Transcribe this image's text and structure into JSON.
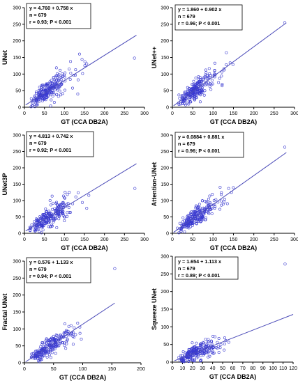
{
  "chart_data": [
    {
      "type": "scatter",
      "ylabel": "UNet",
      "xlabel": "GT (CCA DB2A)",
      "xlim": [
        0,
        300
      ],
      "ylim": [
        0,
        300
      ],
      "xticks": [
        0,
        50,
        100,
        150,
        200,
        250,
        300
      ],
      "yticks": [
        0,
        50,
        100,
        150,
        200,
        250,
        300
      ],
      "annotation": [
        "y = 4.760  +  0.758  x",
        "n = 679",
        "r = 0.93; P < 0.001"
      ],
      "regression": {
        "intercept": 4.76,
        "slope": 0.758,
        "x_range": [
          3,
          280
        ]
      },
      "n": 679,
      "outliers": [
        [
          275,
          148
        ]
      ]
    },
    {
      "type": "scatter",
      "ylabel": "UNet++",
      "xlabel": "GT (CCA DB2A)",
      "xlim": [
        0,
        300
      ],
      "ylim": [
        0,
        300
      ],
      "xticks": [
        0,
        50,
        100,
        150,
        200,
        250,
        300
      ],
      "yticks": [
        0,
        50,
        100,
        150,
        200,
        250,
        300
      ],
      "annotation": [
        "y = 1.860  +  0.902  x",
        "n = 679",
        "r = 0.96; P < 0.001"
      ],
      "regression": {
        "intercept": 1.86,
        "slope": 0.902,
        "x_range": [
          3,
          280
        ]
      },
      "n": 679,
      "outliers": [
        [
          276,
          255
        ]
      ]
    },
    {
      "type": "scatter",
      "ylabel": "UNet3P",
      "xlabel": "GT (CCA DB2A)",
      "xlim": [
        0,
        300
      ],
      "ylim": [
        0,
        300
      ],
      "xticks": [
        0,
        50,
        100,
        150,
        200,
        250,
        300
      ],
      "yticks": [
        0,
        50,
        100,
        150,
        200,
        250,
        300
      ],
      "annotation": [
        "y = 4.813  +  0.742  x",
        "n = 679",
        "r = 0.92; P < 0.001"
      ],
      "regression": {
        "intercept": 4.813,
        "slope": 0.742,
        "x_range": [
          3,
          280
        ]
      },
      "n": 679,
      "outliers": [
        [
          276,
          137
        ]
      ]
    },
    {
      "type": "scatter",
      "ylabel": "Attention-UNet",
      "xlabel": "GT (CCA DB2A)",
      "xlim": [
        0,
        300
      ],
      "ylim": [
        0,
        300
      ],
      "xticks": [
        0,
        50,
        100,
        150,
        200,
        250,
        300
      ],
      "yticks": [
        0,
        50,
        100,
        150,
        200,
        250,
        300
      ],
      "annotation": [
        "y = 0.0884  +  0.881  x",
        "n = 679",
        "r = 0.96; P < 0.001"
      ],
      "regression": {
        "intercept": 0.0884,
        "slope": 0.881,
        "x_range": [
          3,
          280
        ]
      },
      "n": 679,
      "outliers": [
        [
          276,
          263
        ]
      ]
    },
    {
      "type": "scatter",
      "ylabel": "Fractal UNet",
      "xlabel": "GT (CCA DB2A)",
      "xlim": [
        0,
        200
      ],
      "ylim": [
        0,
        300
      ],
      "xticks": [
        0,
        50,
        100,
        150,
        200
      ],
      "yticks": [
        0,
        50,
        100,
        150,
        200,
        250,
        300
      ],
      "annotation": [
        "y = 0.576  +  1.133  x",
        "n = 679",
        "r = 0.94; P < 0.001"
      ],
      "regression": {
        "intercept": 0.576,
        "slope": 1.133,
        "x_range": [
          2,
          155
        ]
      },
      "n": 679,
      "outliers": [
        [
          155,
          278
        ]
      ]
    },
    {
      "type": "scatter",
      "ylabel": "Squeeze UNet",
      "xlabel": "GT (CCA DB2A)",
      "xlim": [
        0,
        120
      ],
      "ylim": [
        0,
        300
      ],
      "xticks": [
        0,
        10,
        20,
        30,
        40,
        50,
        60,
        70,
        80,
        90,
        100,
        110,
        120
      ],
      "yticks": [
        0,
        50,
        100,
        150,
        200,
        250,
        300
      ],
      "annotation": [
        "y = 1.654  +  1.113  x",
        "n = 679",
        "r = 0.89; P < 0.001"
      ],
      "regression": {
        "intercept": 1.654,
        "slope": 1.113,
        "x_range": [
          2,
          120
        ]
      },
      "n": 679,
      "outliers": [
        [
          112,
          278
        ]
      ]
    }
  ],
  "colors": {
    "points": "#3a3ad0",
    "regression_line": "#4a4ab8",
    "axes": "#000000"
  }
}
